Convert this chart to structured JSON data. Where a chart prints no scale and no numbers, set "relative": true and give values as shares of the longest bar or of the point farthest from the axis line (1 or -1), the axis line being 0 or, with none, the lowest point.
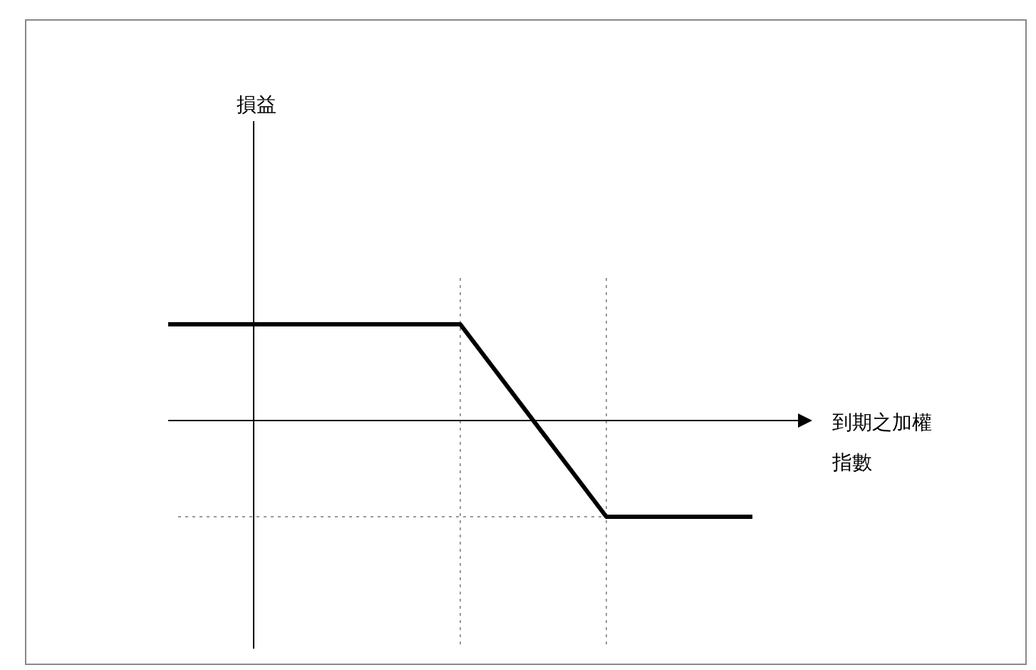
{
  "chart_data": {
    "type": "line",
    "relative": true,
    "xlabel": "到期之加權指數",
    "annotations": [
      "損益"
    ],
    "categories": [
      null,
      null,
      null,
      null,
      null
    ],
    "values": [
      1,
      1,
      1,
      -1,
      -1
    ],
    "color": "#000000",
    "line_style": "solid",
    "marker": "none"
  }
}
